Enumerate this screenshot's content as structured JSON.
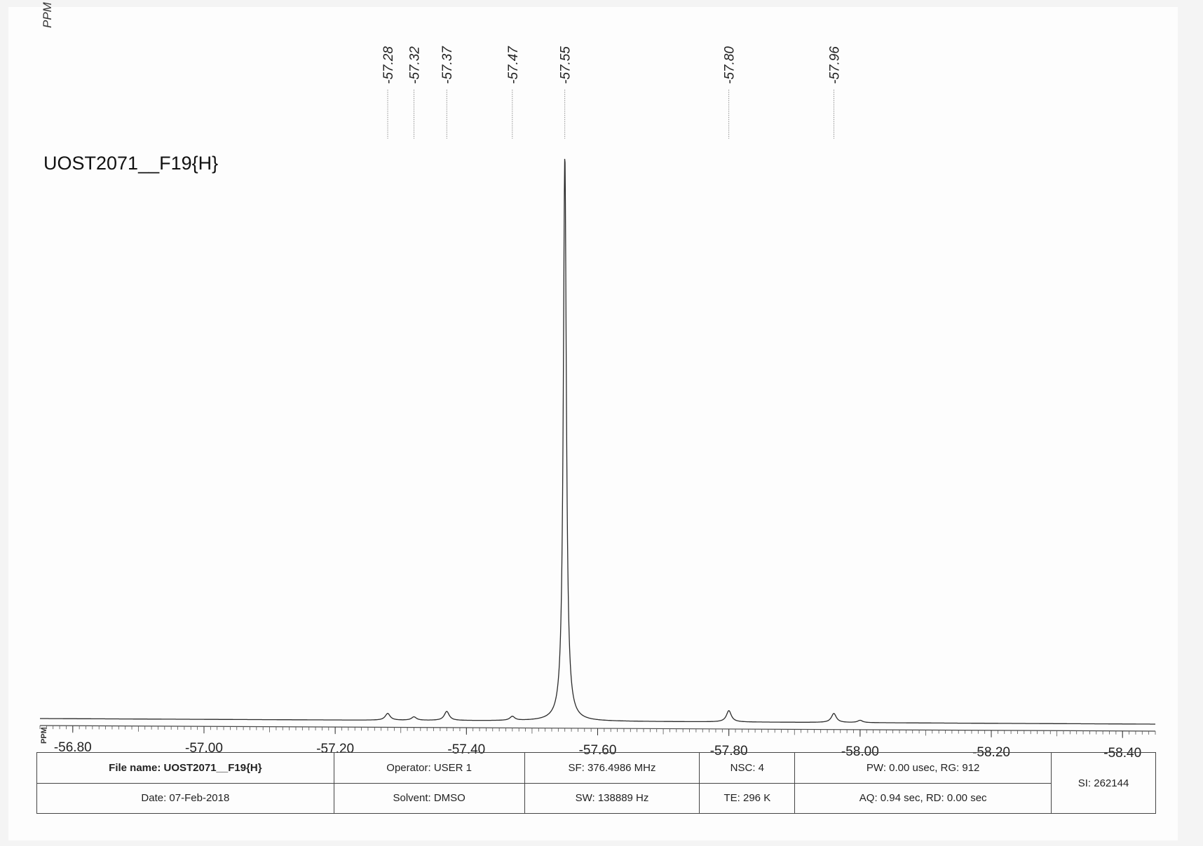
{
  "page": {
    "axis_unit_top": "PPM",
    "sample_name": "UOST2071__F19{H}",
    "axis_unit_side": "PPM"
  },
  "info": {
    "file_name": "File name: UOST2071__F19{H}",
    "date": "Date: 07-Feb-2018",
    "operator": "Operator: USER 1",
    "solvent": "Solvent: DMSO",
    "sf": "SF: 376.4986 MHz",
    "sw": "SW: 138889 Hz",
    "nsc": "NSC: 4",
    "te": "TE: 296 K",
    "pw_rg": "PW: 0.00 usec, RG: 912",
    "aq_rd": "AQ: 0.94 sec, RD: 0.00 sec",
    "si": "SI: 262144"
  },
  "chart_data": {
    "type": "line",
    "xlabel": "PPM",
    "xlim": [
      -56.75,
      -58.45
    ],
    "x_ticks": [
      -56.8,
      -57.0,
      -57.2,
      -57.4,
      -57.6,
      -57.8,
      -58.0,
      -58.2,
      -58.4
    ],
    "x_tick_labels": [
      "-56.80",
      "-57.00",
      "-57.20",
      "-57.40",
      "-57.60",
      "-57.80",
      "-58.00",
      "-58.20",
      "-58.40"
    ],
    "peak_labels": [
      "-57.28",
      "-57.32",
      "-57.37",
      "-57.47",
      "-57.55",
      "-57.80",
      "-57.96"
    ],
    "peaks": [
      {
        "ppm": -57.28,
        "height": 0.012
      },
      {
        "ppm": -57.32,
        "height": 0.006
      },
      {
        "ppm": -57.37,
        "height": 0.016
      },
      {
        "ppm": -57.47,
        "height": 0.007
      },
      {
        "ppm": -57.55,
        "height": 1.0
      },
      {
        "ppm": -57.8,
        "height": 0.02
      },
      {
        "ppm": -57.96,
        "height": 0.016
      },
      {
        "ppm": -58.0,
        "height": 0.004
      }
    ],
    "grid": false,
    "colors": {
      "line": "#2a2a2a",
      "text": "#222222"
    }
  }
}
